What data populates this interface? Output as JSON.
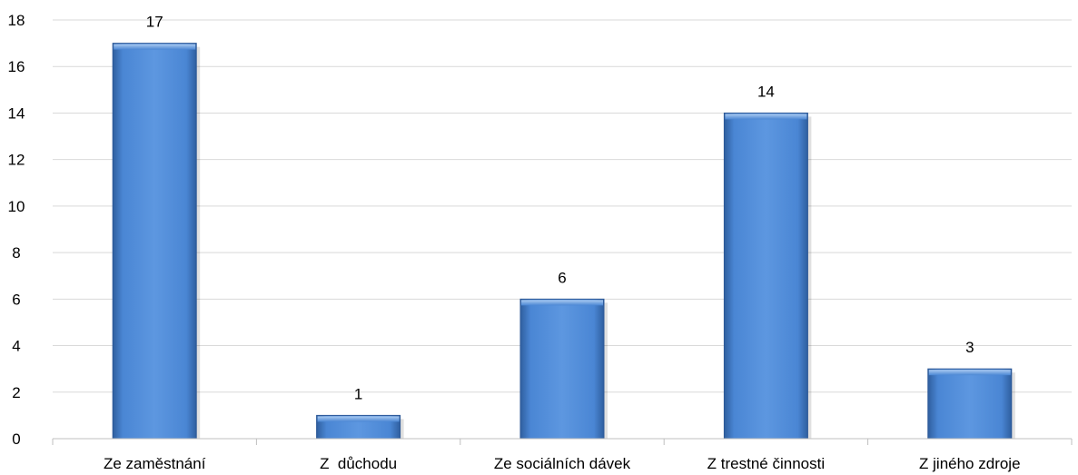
{
  "chart_data": {
    "type": "bar",
    "categories": [
      "Ze zaměstnání",
      "Z  důchodu",
      "Ze sociálních dávek",
      "Z trestné činnosti",
      "Z jiného zdroje"
    ],
    "values": [
      17,
      1,
      6,
      14,
      3
    ],
    "title": "",
    "xlabel": "",
    "ylabel": "",
    "ylim": [
      0,
      18
    ],
    "yticks": [
      0,
      2,
      4,
      6,
      8,
      10,
      12,
      14,
      16,
      18
    ],
    "grid": true,
    "legend": "none",
    "data_labels": true,
    "colors": {
      "bar": "#4a86d4",
      "bar_light": "#8fb8ea",
      "bar_dark": "#2b5797",
      "grid": "#d9d9d9"
    }
  }
}
